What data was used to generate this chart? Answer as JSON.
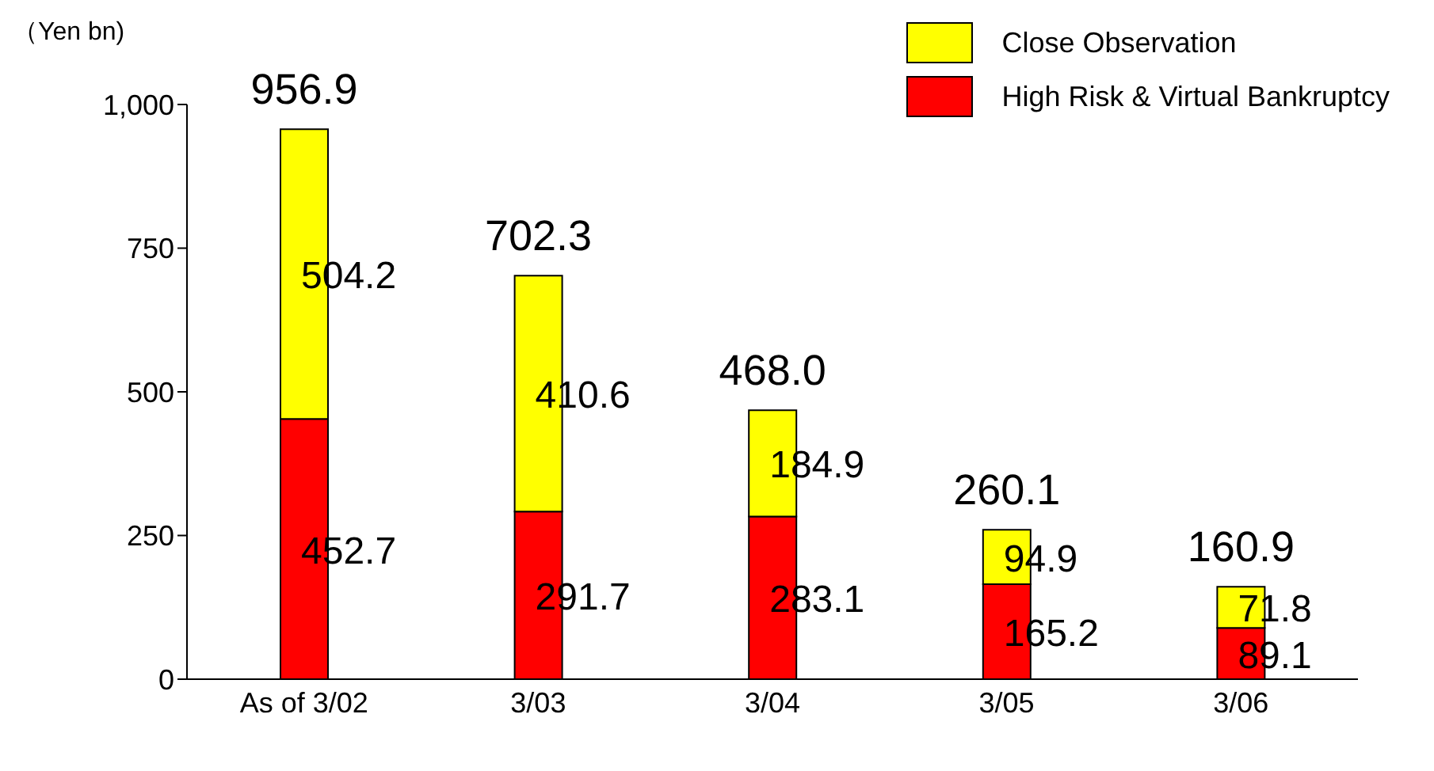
{
  "chart_data": {
    "type": "bar",
    "stacked": true,
    "ylabel": "（Yen bn)",
    "categories": [
      "As of 3/02",
      "3/03",
      "3/04",
      "3/05",
      "3/06"
    ],
    "series": [
      {
        "name": "High Risk & Virtual Bankruptcy",
        "color": "#ff0000",
        "values": [
          452.7,
          291.7,
          283.1,
          165.2,
          89.1
        ]
      },
      {
        "name": "Close Observation",
        "color": "#ffff00",
        "values": [
          504.2,
          410.6,
          184.9,
          94.9,
          71.8
        ]
      }
    ],
    "totals": [
      "956.9",
      "702.3",
      "468.0",
      "260.1",
      "160.9"
    ],
    "data_labels": true,
    "ylim": [
      0,
      1000
    ],
    "yticks": [
      0,
      250,
      500,
      750,
      {
        "value": 1000,
        "label": "1,000"
      }
    ],
    "grid": false,
    "legend": "top right"
  }
}
